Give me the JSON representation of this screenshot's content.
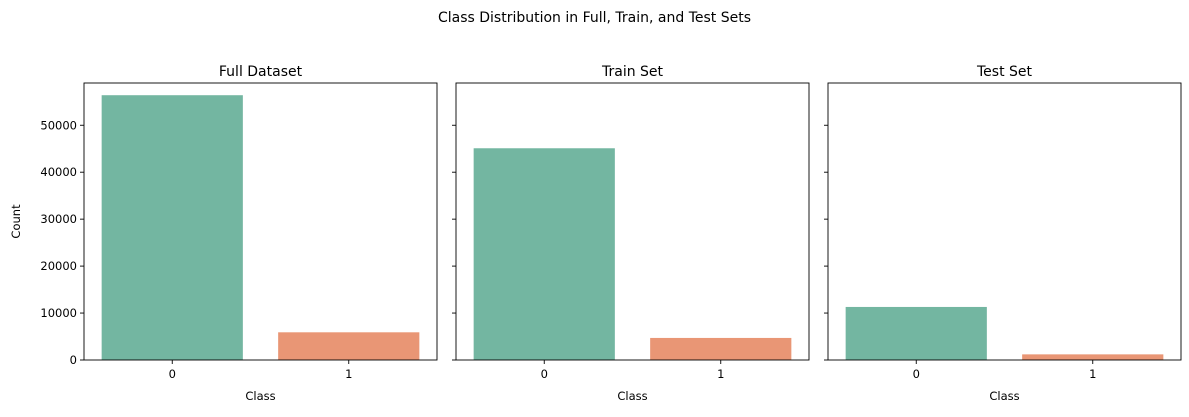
{
  "figure": {
    "suptitle": "Class Distribution in Full, Train, and Test Sets"
  },
  "shared": {
    "ylabel": "Count",
    "ylim": [
      0,
      59000
    ],
    "yticks": [
      0,
      10000,
      20000,
      30000,
      40000,
      50000
    ],
    "ytick_labels": [
      "0",
      "10000",
      "20000",
      "30000",
      "40000",
      "50000"
    ],
    "colors": [
      "#73b6a1",
      "#e99675"
    ]
  },
  "chart_data": [
    {
      "type": "bar",
      "title": "Full Dataset",
      "xlabel": "Class",
      "ylabel": "Count",
      "categories": [
        "0",
        "1"
      ],
      "values": [
        56400,
        5900
      ],
      "ylim": [
        0,
        59000
      ],
      "grid": false,
      "legend": false
    },
    {
      "type": "bar",
      "title": "Train Set",
      "xlabel": "Class",
      "ylabel": "",
      "categories": [
        "0",
        "1"
      ],
      "values": [
        45100,
        4700
      ],
      "ylim": [
        0,
        59000
      ],
      "grid": false,
      "legend": false
    },
    {
      "type": "bar",
      "title": "Test Set",
      "xlabel": "Class",
      "ylabel": "",
      "categories": [
        "0",
        "1"
      ],
      "values": [
        11300,
        1200
      ],
      "ylim": [
        0,
        59000
      ],
      "grid": false,
      "legend": false
    }
  ]
}
